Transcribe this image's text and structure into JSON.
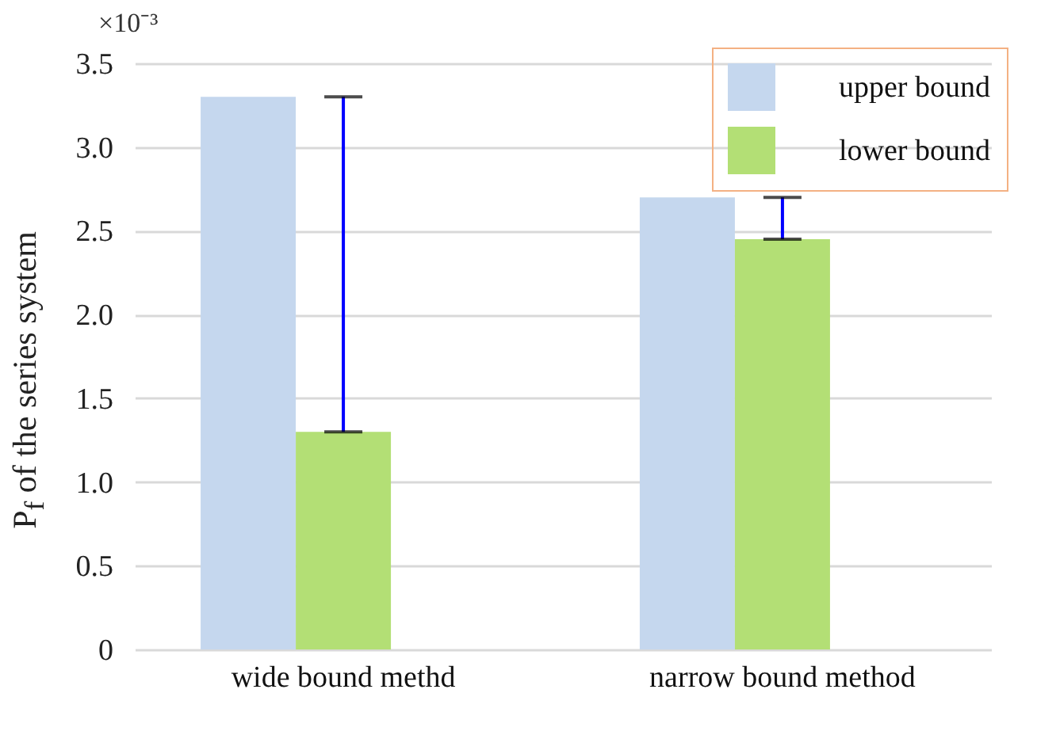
{
  "chart_data": {
    "type": "bar",
    "ylabel": "P$_{f}$ of the series system",
    "annotations": [
      "×10⁻³"
    ],
    "categories": [
      "wide bound methd",
      "narrow bound method"
    ],
    "series": [
      {
        "name": "upper bound",
        "color": "#c5d7ee",
        "values": [
          3.3,
          2.7
        ]
      },
      {
        "name": "lower bound",
        "color": "#b3df75",
        "values": [
          1.3,
          2.45
        ],
        "errors": [
          [
            1.3,
            3.3
          ],
          [
            2.45,
            2.7
          ]
        ]
      }
    ],
    "ylim": [
      0,
      3.5
    ],
    "yticks": [
      0,
      0.5,
      {
        "value": 1,
        "label": "1.0"
      },
      1.5,
      {
        "value": 2,
        "label": "2.0"
      },
      2.5,
      {
        "value": 3,
        "label": "3.0"
      },
      3.5
    ],
    "grid": "y",
    "legend": "top right"
  }
}
